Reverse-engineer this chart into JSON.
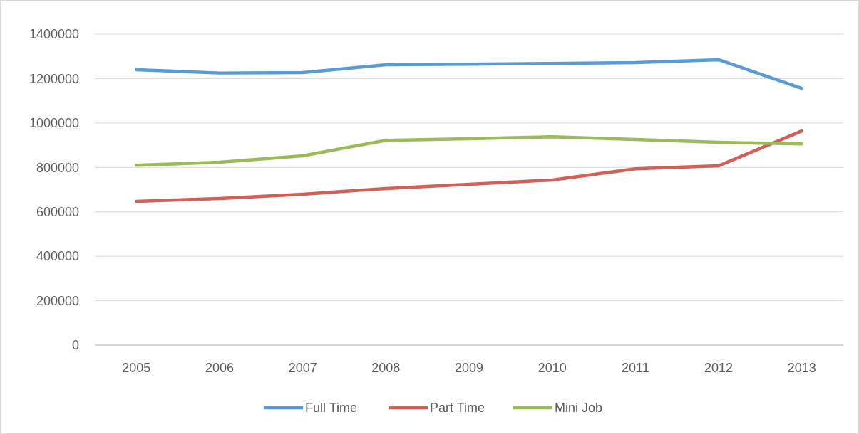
{
  "chart_data": {
    "type": "line",
    "categories": [
      "2005",
      "2006",
      "2007",
      "2008",
      "2009",
      "2010",
      "2011",
      "2012",
      "2013"
    ],
    "series": [
      {
        "name": "Full Time",
        "color": "#5b9bd5",
        "values": [
          1240000,
          1225000,
          1227000,
          1262000,
          1265000,
          1268000,
          1272000,
          1285000,
          1156000
        ]
      },
      {
        "name": "Part Time",
        "color": "#d0605a",
        "values": [
          647000,
          660000,
          679000,
          705000,
          724000,
          743000,
          794000,
          807000,
          964000
        ]
      },
      {
        "name": "Mini Job",
        "color": "#9bbb59",
        "values": [
          810000,
          823000,
          852000,
          922000,
          929000,
          938000,
          926000,
          913000,
          906000
        ]
      }
    ],
    "ylim": [
      0,
      1400000
    ],
    "yticks": [
      0,
      200000,
      400000,
      600000,
      800000,
      1000000,
      1200000,
      1400000
    ],
    "grid": "y",
    "legend": "bottom",
    "marker": "none",
    "line_style": "solid"
  }
}
